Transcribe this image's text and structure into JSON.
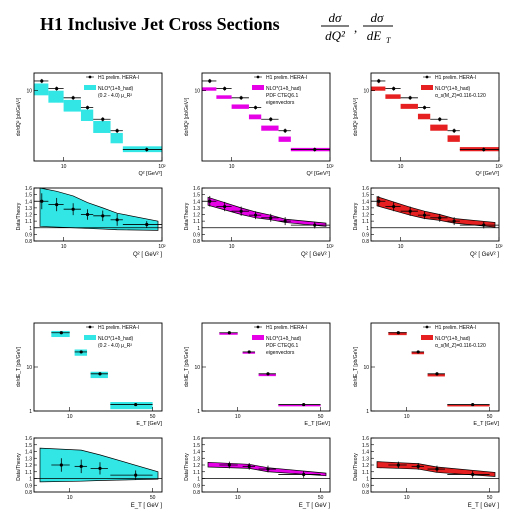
{
  "header": {
    "title": "H1 Inclusive Jet Cross Sections",
    "dq2": {
      "num": "dσ",
      "den": "dQ²"
    },
    "det": {
      "num": "dσ",
      "den": "dE",
      "sub": "T"
    }
  },
  "colors": {
    "cyan": "#33e6e6",
    "magenta": "#e600e6",
    "red": "#e62020",
    "frame": "#000000"
  },
  "chart_data": [
    {
      "id": "q2-cyan",
      "type": "scatter",
      "log_x": true,
      "log_y": true,
      "xlim": [
        5,
        100
      ],
      "ylim": [
        2,
        15
      ],
      "x_tick_labels": [
        "10",
        "10²"
      ],
      "y_tick_labels": [
        "10"
      ],
      "xlabel": "Q² [GeV²]",
      "ylabel": "dσ/dQ² [pb/GeV²]",
      "legend": [
        "H1 prelim. HERA-I",
        "NLO*(1+δ_had)",
        "(0.2 - 4.0) μ_R²"
      ],
      "legend_position": "top-right",
      "data": {
        "x": [
          6,
          8.5,
          12.5,
          17.5,
          25,
          35,
          70
        ],
        "xerr": [
          1,
          1.5,
          2.5,
          2.5,
          5,
          5,
          30
        ],
        "y": [
          12.5,
          10.5,
          8.5,
          6.8,
          5.2,
          4.0,
          2.6
        ],
        "yerr": [
          0.6,
          0.5,
          0.4,
          0.3,
          0.25,
          0.2,
          0.12
        ]
      },
      "band": {
        "lower": [
          9.0,
          7.6,
          6.2,
          5.0,
          3.8,
          3.0,
          2.45
        ],
        "upper": [
          11.8,
          10.0,
          8.1,
          6.5,
          5.0,
          3.8,
          2.8
        ]
      }
    },
    {
      "id": "q2-magenta",
      "type": "scatter",
      "log_x": true,
      "log_y": true,
      "xlim": [
        5,
        100
      ],
      "ylim": [
        2,
        15
      ],
      "x_tick_labels": [
        "10",
        "10²"
      ],
      "y_tick_labels": [
        "10"
      ],
      "xlabel": "Q² [GeV²]",
      "ylabel": "dσ/dQ² [pb/GeV²]",
      "legend": [
        "H1 prelim. HERA-I",
        "NLO*(1+δ_had)",
        "PDF CTEQ6.1",
        "eigenvectors"
      ],
      "legend_position": "top-right",
      "data": {
        "x": [
          6,
          8.5,
          12.5,
          17.5,
          25,
          35,
          70
        ],
        "xerr": [
          1,
          1.5,
          2.5,
          2.5,
          5,
          5,
          30
        ],
        "y": [
          12.5,
          10.5,
          8.5,
          6.8,
          5.2,
          4.0,
          2.6
        ],
        "yerr": [
          0.6,
          0.5,
          0.4,
          0.3,
          0.25,
          0.2,
          0.12
        ]
      },
      "band": {
        "lower": [
          10.0,
          8.3,
          6.6,
          5.2,
          4.0,
          3.1,
          2.5
        ],
        "upper": [
          10.8,
          9.0,
          7.3,
          5.8,
          4.5,
          3.5,
          2.7
        ]
      }
    },
    {
      "id": "q2-red",
      "type": "scatter",
      "log_x": true,
      "log_y": true,
      "xlim": [
        5,
        100
      ],
      "ylim": [
        2,
        15
      ],
      "x_tick_labels": [
        "10",
        "10²"
      ],
      "y_tick_labels": [
        "10"
      ],
      "xlabel": "Q² [GeV²]",
      "ylabel": "dσ/dQ² [pb/GeV²]",
      "legend": [
        "H1 prelim. HERA-I",
        "NLO*(1+δ_had)",
        "α_s(M_Z)=0.116-0.120"
      ],
      "legend_position": "top-right",
      "data": {
        "x": [
          6,
          8.5,
          12.5,
          17.5,
          25,
          35,
          70
        ],
        "xerr": [
          1,
          1.5,
          2.5,
          2.5,
          5,
          5,
          30
        ],
        "y": [
          12.5,
          10.5,
          8.5,
          6.8,
          5.2,
          4.0,
          2.6
        ],
        "yerr": [
          0.6,
          0.5,
          0.4,
          0.3,
          0.25,
          0.2,
          0.12
        ]
      },
      "band": {
        "lower": [
          10.0,
          8.3,
          6.6,
          5.2,
          4.0,
          3.1,
          2.5
        ],
        "upper": [
          11.0,
          9.2,
          7.4,
          5.9,
          4.6,
          3.6,
          2.75
        ]
      }
    },
    {
      "id": "q2-ratio-cyan",
      "type": "scatter",
      "log_x": true,
      "xlim": [
        5,
        100
      ],
      "ylim": [
        0.8,
        1.6
      ],
      "y_ticks": [
        0.8,
        0.9,
        1,
        1.1,
        1.2,
        1.3,
        1.4,
        1.5,
        1.6
      ],
      "x_tick_labels": [
        "10",
        "10²"
      ],
      "xlabel": "Q² [ GeV² ]",
      "ylabel": "Data/Theory",
      "ref_line": 1.0,
      "data": {
        "x": [
          6,
          8.5,
          12.5,
          17.5,
          25,
          35,
          70
        ],
        "xerr": [
          1,
          1.5,
          2.5,
          2.5,
          5,
          5,
          30
        ],
        "y": [
          1.4,
          1.35,
          1.28,
          1.2,
          1.18,
          1.12,
          1.05
        ],
        "yerr": [
          0.12,
          0.1,
          0.09,
          0.08,
          0.08,
          0.09,
          0.05
        ]
      },
      "band": {
        "lower": [
          1.02,
          1.01,
          1.0,
          0.99,
          0.98,
          0.97,
          0.96
        ],
        "upper": [
          1.6,
          1.55,
          1.48,
          1.38,
          1.3,
          1.22,
          1.1
        ]
      }
    },
    {
      "id": "q2-ratio-magenta",
      "type": "scatter",
      "log_x": true,
      "xlim": [
        5,
        100
      ],
      "ylim": [
        0.8,
        1.6
      ],
      "y_ticks": [
        0.8,
        0.9,
        1,
        1.1,
        1.2,
        1.3,
        1.4,
        1.5,
        1.6
      ],
      "x_tick_labels": [
        "10",
        "10²"
      ],
      "xlabel": "Q² [ GeV² ]",
      "ylabel": "Data/Theory",
      "ref_line": 1.0,
      "data": {
        "x": [
          6,
          8.5,
          12.5,
          17.5,
          25,
          35,
          70
        ],
        "xerr": [
          1,
          1.5,
          2.5,
          2.5,
          5,
          5,
          30
        ],
        "y": [
          1.4,
          1.32,
          1.25,
          1.19,
          1.15,
          1.1,
          1.04
        ],
        "yerr": [
          0.08,
          0.07,
          0.07,
          0.06,
          0.06,
          0.06,
          0.05
        ]
      },
      "band": {
        "lower": [
          1.34,
          1.27,
          1.2,
          1.15,
          1.12,
          1.08,
          1.02
        ],
        "upper": [
          1.46,
          1.38,
          1.3,
          1.24,
          1.19,
          1.13,
          1.07
        ]
      }
    },
    {
      "id": "q2-ratio-red",
      "type": "scatter",
      "log_x": true,
      "xlim": [
        5,
        100
      ],
      "ylim": [
        0.8,
        1.6
      ],
      "y_ticks": [
        0.8,
        0.9,
        1,
        1.1,
        1.2,
        1.3,
        1.4,
        1.5,
        1.6
      ],
      "x_tick_labels": [
        "10",
        "10²"
      ],
      "xlabel": "Q² [ GeV² ]",
      "ylabel": "Data/Theory",
      "ref_line": 1.0,
      "data": {
        "x": [
          6,
          8.5,
          12.5,
          17.5,
          25,
          35,
          70
        ],
        "xerr": [
          1,
          1.5,
          2.5,
          2.5,
          5,
          5,
          30
        ],
        "y": [
          1.4,
          1.32,
          1.25,
          1.19,
          1.15,
          1.1,
          1.04
        ],
        "yerr": [
          0.08,
          0.07,
          0.07,
          0.06,
          0.06,
          0.06,
          0.05
        ]
      },
      "band": {
        "lower": [
          1.33,
          1.26,
          1.19,
          1.14,
          1.11,
          1.07,
          1.01
        ],
        "upper": [
          1.47,
          1.39,
          1.31,
          1.25,
          1.2,
          1.14,
          1.08
        ]
      }
    },
    {
      "id": "et-cyan",
      "type": "scatter",
      "log_x": true,
      "log_y": true,
      "xlim": [
        5,
        60
      ],
      "ylim": [
        1,
        100
      ],
      "x_tick_labels": [
        "10",
        "50"
      ],
      "y_tick_labels": [
        "1",
        "10"
      ],
      "xlabel": "E_T [GeV]",
      "ylabel": "dσ/dE_T [pb/GeV]",
      "legend": [
        "H1 prelim. HERA-I",
        "NLO*(1+δ_had)",
        "(0.2 - 4.0) μ_R²"
      ],
      "legend_position": "top-right",
      "data": {
        "x": [
          8.5,
          12.5,
          18,
          36
        ],
        "xerr": [
          1.5,
          1.5,
          3,
          14
        ],
        "y": [
          60,
          22,
          7,
          1.4
        ],
        "yerr": [
          3,
          1.5,
          0.6,
          0.1
        ]
      },
      "band": {
        "lower": [
          48,
          18,
          5.6,
          1.1
        ],
        "upper": [
          66,
          25,
          7.8,
          1.6
        ]
      }
    },
    {
      "id": "et-magenta",
      "type": "scatter",
      "log_x": true,
      "log_y": true,
      "xlim": [
        5,
        60
      ],
      "ylim": [
        1,
        100
      ],
      "x_tick_labels": [
        "10",
        "50"
      ],
      "y_tick_labels": [
        "1",
        "10"
      ],
      "xlabel": "E_T [GeV]",
      "ylabel": "dσ/dE_T [pb/GeV]",
      "legend": [
        "H1 prelim. HERA-I",
        "NLO*(1+δ_had)",
        "PDF CTEQ6.1",
        "eigenvectors"
      ],
      "legend_position": "top-right",
      "data": {
        "x": [
          8.5,
          12.5,
          18,
          36
        ],
        "xerr": [
          1.5,
          1.5,
          3,
          14
        ],
        "y": [
          60,
          22,
          7,
          1.4
        ],
        "yerr": [
          3,
          1.5,
          0.6,
          0.1
        ]
      },
      "band": {
        "lower": [
          54,
          20,
          6.2,
          1.28
        ],
        "upper": [
          60,
          22,
          6.9,
          1.38
        ]
      }
    },
    {
      "id": "et-red",
      "type": "scatter",
      "log_x": true,
      "log_y": true,
      "xlim": [
        5,
        60
      ],
      "ylim": [
        1,
        100
      ],
      "x_tick_labels": [
        "10",
        "50"
      ],
      "y_tick_labels": [
        "1",
        "10"
      ],
      "xlabel": "E_T [GeV]",
      "ylabel": "dσ/dE_T [pb/GeV]",
      "legend": [
        "H1 prelim. HERA-I",
        "NLO*(1+δ_had)",
        "α_s(M_Z)=0.116-0.120"
      ],
      "legend_position": "top-right",
      "data": {
        "x": [
          8.5,
          12.5,
          18,
          36
        ],
        "xerr": [
          1.5,
          1.5,
          3,
          14
        ],
        "y": [
          60,
          22,
          7,
          1.4
        ],
        "yerr": [
          3,
          1.5,
          0.6,
          0.1
        ]
      },
      "band": {
        "lower": [
          53,
          19.5,
          6.1,
          1.27
        ],
        "upper": [
          62,
          22.5,
          7.0,
          1.4
        ]
      }
    },
    {
      "id": "et-ratio-cyan",
      "type": "scatter",
      "log_x": true,
      "xlim": [
        5,
        60
      ],
      "ylim": [
        0.8,
        1.6
      ],
      "y_ticks": [
        0.8,
        0.9,
        1,
        1.1,
        1.2,
        1.3,
        1.4,
        1.5,
        1.6
      ],
      "x_tick_labels": [
        "10",
        "50"
      ],
      "xlabel": "E_T [ GeV ]",
      "ylabel": "Data/Theory",
      "ref_line": 1.0,
      "data": {
        "x": [
          8.5,
          12.5,
          18,
          36
        ],
        "xerr": [
          1.5,
          1.5,
          3,
          14
        ],
        "y": [
          1.2,
          1.18,
          1.15,
          1.05
        ],
        "yerr": [
          0.1,
          0.1,
          0.09,
          0.07
        ]
      },
      "band": {
        "lower": [
          0.95,
          0.96,
          0.97,
          0.99
        ],
        "upper": [
          1.45,
          1.42,
          1.35,
          1.1
        ]
      }
    },
    {
      "id": "et-ratio-magenta",
      "type": "scatter",
      "log_x": true,
      "xlim": [
        5,
        60
      ],
      "ylim": [
        0.8,
        1.6
      ],
      "y_ticks": [
        0.8,
        0.9,
        1,
        1.1,
        1.2,
        1.3,
        1.4,
        1.5,
        1.6
      ],
      "x_tick_labels": [
        "10",
        "50"
      ],
      "xlabel": "E_T [ GeV ]",
      "ylabel": "Data/Theory",
      "ref_line": 1.0,
      "data": {
        "x": [
          8.5,
          12.5,
          18,
          36
        ],
        "xerr": [
          1.5,
          1.5,
          3,
          14
        ],
        "y": [
          1.2,
          1.18,
          1.14,
          1.06
        ],
        "yerr": [
          0.05,
          0.05,
          0.05,
          0.05
        ]
      },
      "band": {
        "lower": [
          1.17,
          1.15,
          1.1,
          1.04
        ],
        "upper": [
          1.24,
          1.21,
          1.16,
          1.08
        ]
      }
    },
    {
      "id": "et-ratio-red",
      "type": "scatter",
      "log_x": true,
      "xlim": [
        5,
        60
      ],
      "ylim": [
        0.8,
        1.6
      ],
      "y_ticks": [
        0.8,
        0.9,
        1,
        1.1,
        1.2,
        1.3,
        1.4,
        1.5,
        1.6
      ],
      "x_tick_labels": [
        "10",
        "50"
      ],
      "xlabel": "E_T [ GeV ]",
      "ylabel": "Data/Theory",
      "ref_line": 1.0,
      "data": {
        "x": [
          8.5,
          12.5,
          18,
          36
        ],
        "xerr": [
          1.5,
          1.5,
          3,
          14
        ],
        "y": [
          1.2,
          1.18,
          1.14,
          1.06
        ],
        "yerr": [
          0.05,
          0.05,
          0.05,
          0.05
        ]
      },
      "band": {
        "lower": [
          1.16,
          1.14,
          1.09,
          1.03
        ],
        "upper": [
          1.25,
          1.22,
          1.17,
          1.09
        ]
      }
    }
  ]
}
